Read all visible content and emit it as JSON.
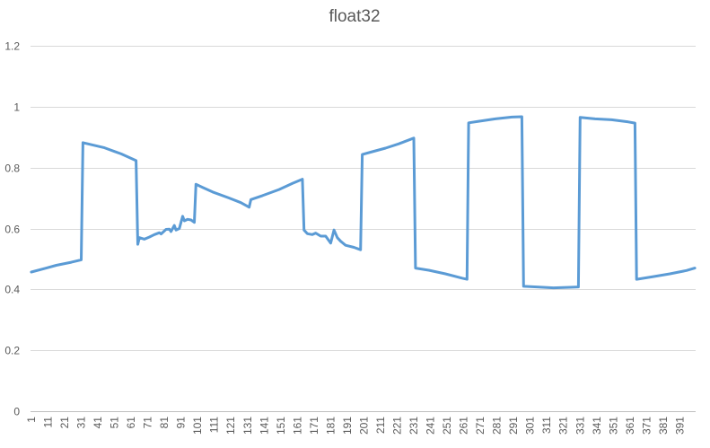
{
  "chart_data": {
    "type": "line",
    "title": "float32",
    "xlabel": "",
    "ylabel": "",
    "ylim": [
      0,
      1.2
    ],
    "yticks": [
      "0",
      "0.2",
      "0.4",
      "0.6",
      "0.8",
      "1",
      "1.2"
    ],
    "grid": true,
    "legend": "none",
    "x_tick_labels": [
      "1",
      "11",
      "21",
      "31",
      "41",
      "51",
      "61",
      "71",
      "81",
      "91",
      "101",
      "111",
      "121",
      "131",
      "141",
      "151",
      "161",
      "171",
      "181",
      "191",
      "201",
      "211",
      "221",
      "231",
      "241",
      "251",
      "261",
      "271",
      "281",
      "291",
      "301",
      "311",
      "321",
      "331",
      "341",
      "351",
      "361",
      "371",
      "381",
      "391"
    ],
    "x_count": 400,
    "series": [
      {
        "color": "#5b9bd5",
        "points": [
          [
            1,
            0.457
          ],
          [
            10,
            0.47
          ],
          [
            16,
            0.479
          ],
          [
            25,
            0.489
          ],
          [
            31,
            0.497
          ],
          [
            32,
            0.882
          ],
          [
            45,
            0.865
          ],
          [
            55,
            0.845
          ],
          [
            64,
            0.823
          ],
          [
            65,
            0.548
          ],
          [
            66,
            0.57
          ],
          [
            69,
            0.565
          ],
          [
            72,
            0.572
          ],
          [
            75,
            0.58
          ],
          [
            78,
            0.586
          ],
          [
            79,
            0.582
          ],
          [
            82,
            0.597
          ],
          [
            84,
            0.598
          ],
          [
            85,
            0.59
          ],
          [
            87,
            0.61
          ],
          [
            88,
            0.595
          ],
          [
            90,
            0.6
          ],
          [
            92,
            0.64
          ],
          [
            93,
            0.625
          ],
          [
            95,
            0.63
          ],
          [
            97,
            0.628
          ],
          [
            99,
            0.62
          ],
          [
            100,
            0.745
          ],
          [
            104,
            0.735
          ],
          [
            110,
            0.72
          ],
          [
            120,
            0.7
          ],
          [
            127,
            0.685
          ],
          [
            132,
            0.67
          ],
          [
            133,
            0.695
          ],
          [
            140,
            0.708
          ],
          [
            150,
            0.728
          ],
          [
            158,
            0.748
          ],
          [
            164,
            0.762
          ],
          [
            165,
            0.595
          ],
          [
            167,
            0.583
          ],
          [
            170,
            0.58
          ],
          [
            172,
            0.585
          ],
          [
            175,
            0.575
          ],
          [
            178,
            0.575
          ],
          [
            181,
            0.552
          ],
          [
            183,
            0.595
          ],
          [
            185,
            0.57
          ],
          [
            187,
            0.558
          ],
          [
            190,
            0.545
          ],
          [
            195,
            0.538
          ],
          [
            199,
            0.53
          ],
          [
            200,
            0.843
          ],
          [
            206,
            0.852
          ],
          [
            214,
            0.864
          ],
          [
            222,
            0.878
          ],
          [
            231,
            0.897
          ],
          [
            232,
            0.47
          ],
          [
            240,
            0.463
          ],
          [
            250,
            0.451
          ],
          [
            260,
            0.437
          ],
          [
            263,
            0.433
          ],
          [
            264,
            0.947
          ],
          [
            270,
            0.952
          ],
          [
            280,
            0.96
          ],
          [
            290,
            0.966
          ],
          [
            296,
            0.967
          ],
          [
            297,
            0.41
          ],
          [
            305,
            0.408
          ],
          [
            315,
            0.405
          ],
          [
            325,
            0.407
          ],
          [
            330,
            0.408
          ],
          [
            331,
            0.965
          ],
          [
            340,
            0.96
          ],
          [
            350,
            0.957
          ],
          [
            360,
            0.95
          ],
          [
            364,
            0.946
          ],
          [
            365,
            0.433
          ],
          [
            375,
            0.442
          ],
          [
            385,
            0.451
          ],
          [
            395,
            0.462
          ],
          [
            400,
            0.47
          ]
        ]
      }
    ]
  }
}
